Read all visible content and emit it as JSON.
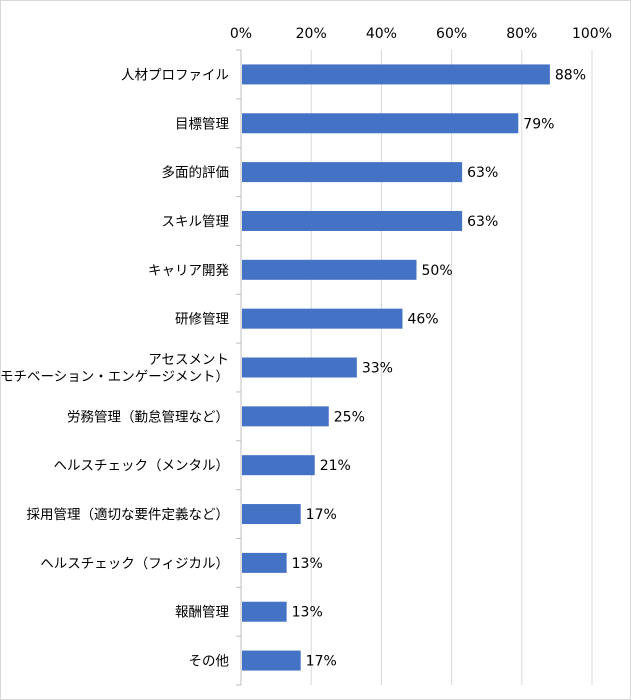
{
  "chart_data": {
    "type": "bar",
    "orientation": "horizontal",
    "title": "",
    "xlabel": "",
    "ylabel": "",
    "xlim": [
      0,
      100
    ],
    "x_ticks": [
      "0%",
      "20%",
      "40%",
      "60%",
      "80%",
      "100%"
    ],
    "grid": true,
    "legend": "none",
    "bar_color": "#4472C4",
    "categories": [
      [
        "人材プロファイル"
      ],
      [
        "目標管理"
      ],
      [
        "多面的評価"
      ],
      [
        "スキル管理"
      ],
      [
        "キャリア開発"
      ],
      [
        "研修管理"
      ],
      [
        "アセスメント",
        "（モチベーション・エンゲージメント）"
      ],
      [
        "労務管理（勤怠管理など）"
      ],
      [
        "ヘルスチェック（メンタル）"
      ],
      [
        "採用管理（適切な要件定義など）"
      ],
      [
        "ヘルスチェック（フィジカル）"
      ],
      [
        "報酬管理"
      ],
      [
        "その他"
      ]
    ],
    "values": [
      88,
      79,
      63,
      63,
      50,
      46,
      33,
      25,
      21,
      17,
      13,
      13,
      17
    ],
    "data_labels": [
      "88%",
      "79%",
      "63%",
      "63%",
      "50%",
      "46%",
      "33%",
      "25%",
      "21%",
      "17%",
      "13%",
      "13%",
      "17%"
    ]
  }
}
